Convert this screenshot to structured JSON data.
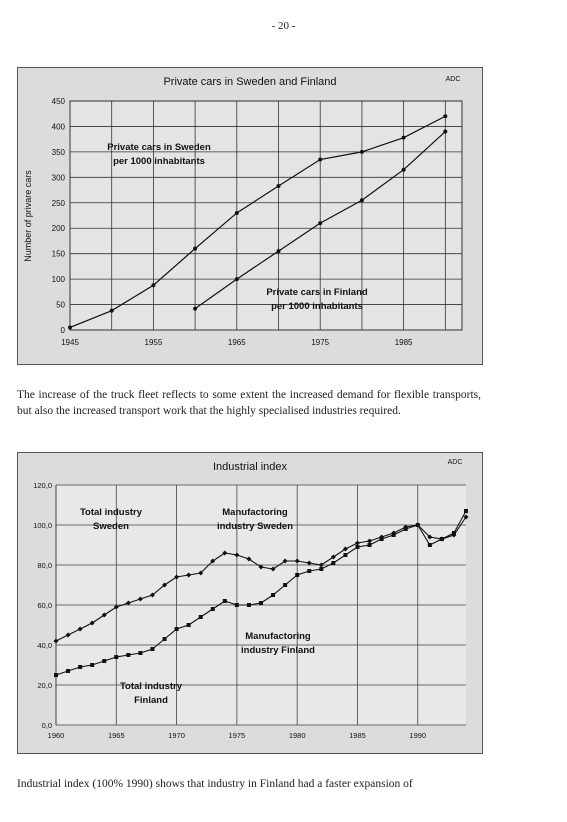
{
  "page_number": "- 20 -",
  "paragraph1": "The increase of the truck fleet reflects to some extent the increased demand for flexible transports, but also the increased transport work that the highly specialised industries required.",
  "paragraph2": "Industrial index (100% 1990) shows that industry in Finland had a faster expansion of",
  "chart_data": [
    {
      "type": "line",
      "title": "Private cars in Sweden and Finland",
      "source_label": "ADC",
      "ylabel": "Number of privare cars",
      "xlabel": "",
      "ylim": [
        0,
        450
      ],
      "yticks": [
        "0",
        "50",
        "100",
        "150",
        "200",
        "250",
        "300",
        "350",
        "400",
        "450"
      ],
      "xticks": [
        "1945",
        "1955",
        "1965",
        "1975",
        "1985"
      ],
      "grid": true,
      "series": [
        {
          "name": "Private cars in Sweden per 1000 inhabitants",
          "label_line1": "Private cars in Sweden",
          "label_line2": "per 1000 inhabitants",
          "x": [
            1945,
            1950,
            1955,
            1960,
            1965,
            1970,
            1975,
            1980,
            1985,
            1990
          ],
          "values": [
            5,
            38,
            88,
            160,
            230,
            283,
            335,
            350,
            378,
            420
          ]
        },
        {
          "name": "Private cars in Finland per 1000 inhabitants",
          "label_line1": "Private cars in Finland",
          "label_line2": "per 1000 inhabitants",
          "x": [
            1960,
            1965,
            1970,
            1975,
            1980,
            1985,
            1990
          ],
          "values": [
            42,
            100,
            155,
            210,
            255,
            315,
            390
          ]
        }
      ]
    },
    {
      "type": "line",
      "title": "Industrial index",
      "source_label": "ADC",
      "xlabel": "",
      "ylabel": "",
      "ylim": [
        0,
        120
      ],
      "yticks": [
        "0,0",
        "20,0",
        "40,0",
        "60,0",
        "80,0",
        "100,0",
        "120,0"
      ],
      "xticks": [
        "1960",
        "1965",
        "1970",
        "1975",
        "1980",
        "1985",
        "1990"
      ],
      "grid": true,
      "series": [
        {
          "name": "Total industry Sweden",
          "label_line1": "Total industry",
          "label_line2": "Sweden",
          "x": [
            1960,
            1961,
            1962,
            1963,
            1964,
            1965,
            1966,
            1967,
            1968,
            1969,
            1970,
            1971,
            1972,
            1973,
            1974,
            1975,
            1976,
            1977,
            1978,
            1979,
            1980,
            1981,
            1982,
            1983,
            1984,
            1985,
            1986,
            1987,
            1988,
            1989,
            1990,
            1991,
            1992,
            1993,
            1994
          ],
          "values": [
            42,
            45,
            48,
            51,
            55,
            59,
            61,
            63,
            65,
            70,
            74,
            75,
            76,
            82,
            86,
            85,
            83,
            79,
            78,
            82,
            82,
            81,
            80,
            84,
            88,
            91,
            92,
            94,
            96,
            99,
            100,
            94,
            93,
            95,
            104
          ]
        },
        {
          "name": "Manufactoring industry Sweden",
          "label_line1": "Manufactoring",
          "label_line2": "industry Sweden",
          "x": [],
          "values": []
        },
        {
          "name": "Manufactoring industry Finland",
          "label_line1": "Manufactoring",
          "label_line2": "industry Finland",
          "x": [
            1960,
            1961,
            1962,
            1963,
            1964,
            1965,
            1966,
            1967,
            1968,
            1969,
            1970,
            1971,
            1972,
            1973,
            1974,
            1975,
            1976,
            1977,
            1978,
            1979,
            1980,
            1981,
            1982,
            1983,
            1984,
            1985,
            1986,
            1987,
            1988,
            1989,
            1990,
            1991,
            1992,
            1993,
            1994
          ],
          "values": [
            25,
            27,
            29,
            30,
            32,
            34,
            35,
            36,
            38,
            43,
            48,
            50,
            54,
            58,
            62,
            60,
            60,
            61,
            65,
            70,
            75,
            77,
            78,
            81,
            85,
            89,
            90,
            93,
            95,
            98,
            100,
            90,
            93,
            96,
            107
          ]
        },
        {
          "name": "Total industry Finland",
          "label_line1": "Total industry",
          "label_line2": "Finland",
          "x": [],
          "values": []
        }
      ]
    }
  ]
}
